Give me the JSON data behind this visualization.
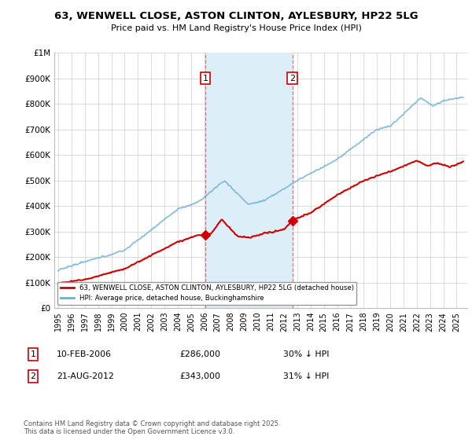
{
  "title1": "63, WENWELL CLOSE, ASTON CLINTON, AYLESBURY, HP22 5LG",
  "title2": "Price paid vs. HM Land Registry's House Price Index (HPI)",
  "ylim": [
    0,
    1000000
  ],
  "yticks": [
    0,
    100000,
    200000,
    300000,
    400000,
    500000,
    600000,
    700000,
    800000,
    900000,
    1000000
  ],
  "ytick_labels": [
    "£0",
    "£100K",
    "£200K",
    "£300K",
    "£400K",
    "£500K",
    "£600K",
    "£700K",
    "£800K",
    "£900K",
    "£1M"
  ],
  "sale1_date": 2006.08,
  "sale1_price": 286000,
  "sale2_date": 2012.63,
  "sale2_price": 343000,
  "hpi_color": "#6baed6",
  "price_color": "#cc0000",
  "shaded_region_color": "#ddeef8",
  "legend_label1": "63, WENWELL CLOSE, ASTON CLINTON, AYLESBURY, HP22 5LG (detached house)",
  "legend_label2": "HPI: Average price, detached house, Buckinghamshire",
  "annotation1_date": "10-FEB-2006",
  "annotation1_price": "£286,000",
  "annotation1_hpi": "30% ↓ HPI",
  "annotation2_date": "21-AUG-2012",
  "annotation2_price": "£343,000",
  "annotation2_hpi": "31% ↓ HPI",
  "footer": "Contains HM Land Registry data © Crown copyright and database right 2025.\nThis data is licensed under the Open Government Licence v3.0.",
  "background_color": "#ffffff",
  "grid_color": "#cccccc",
  "xlim_left": 1994.7,
  "xlim_right": 2025.8
}
